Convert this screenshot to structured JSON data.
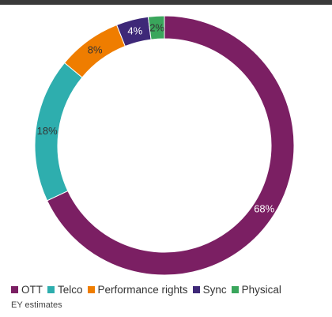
{
  "chart_data": {
    "type": "pie",
    "variant": "donut",
    "categories": [
      "OTT",
      "Telco",
      "Performance rights",
      "Sync",
      "Physical"
    ],
    "values": [
      68,
      18,
      8,
      4,
      2
    ],
    "labels": [
      "68%",
      "18%",
      "8%",
      "4%",
      "2%"
    ],
    "colors": [
      "#7b1f63",
      "#2eaeae",
      "#ef7d00",
      "#3e2878",
      "#3aa65c"
    ],
    "label_colors": [
      "#ffffff",
      "#333333",
      "#333333",
      "#ffffff",
      "#333333"
    ],
    "start": "top",
    "direction": "clockwise",
    "legend_position": "bottom"
  },
  "source_note": "EY estimates"
}
